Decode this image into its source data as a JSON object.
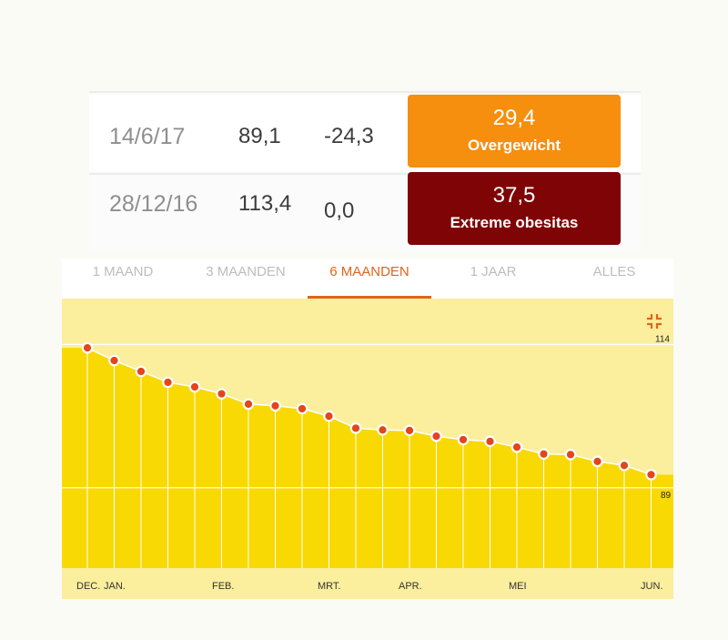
{
  "entries": [
    {
      "date": "14/6/17",
      "weight": "89,1",
      "difference": "-24,3",
      "bmi": "29,4",
      "category": "Overgewicht",
      "color": "#f68e0e"
    },
    {
      "date": "28/12/16",
      "weight": "113,4",
      "difference": "0,0",
      "bmi": "37,5",
      "category": "Extreme obesitas",
      "color": "#7f0406"
    }
  ],
  "tabs": [
    {
      "label": "1 MAAND",
      "active": false
    },
    {
      "label": "3 MAANDEN",
      "active": false
    },
    {
      "label": "6 MAANDEN",
      "active": true
    },
    {
      "label": "1 JAAR",
      "active": false
    },
    {
      "label": "ALLES",
      "active": false
    }
  ],
  "colors": {
    "accent": "#e0641c",
    "chart_bg": "#fbee9d",
    "area": "#f8d904",
    "point": "#e2461a"
  },
  "icons": {
    "collapse": "collapse-icon"
  },
  "chart_data": {
    "type": "area",
    "y_reference_labels": [
      "114",
      "89"
    ],
    "ylim": [
      75,
      122
    ],
    "x_labels": [
      "DEC.",
      "JAN.",
      "FEB.",
      "MRT.",
      "APR.",
      "MEI",
      "JUN."
    ],
    "values": [
      113.4,
      111.2,
      109.3,
      107.4,
      106.6,
      105.4,
      103.6,
      103.3,
      102.8,
      101.5,
      99.4,
      99.1,
      99.0,
      98.0,
      97.4,
      97.1,
      96.1,
      94.9,
      94.8,
      93.6,
      92.9,
      91.3
    ],
    "grid": true
  }
}
